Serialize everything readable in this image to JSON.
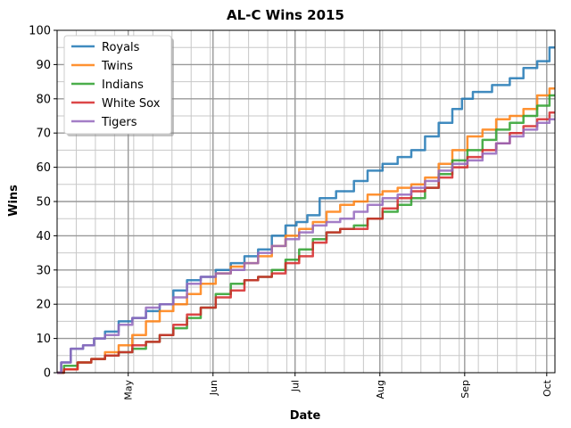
{
  "chart_data": {
    "type": "line",
    "title": "AL-C Wins 2015",
    "xlabel": "Date",
    "ylabel": "Wins",
    "xlim": [
      "2015-04-05",
      "2015-10-04"
    ],
    "ylim": [
      0,
      100
    ],
    "x_ticks": [
      {
        "date": "2015-05-01",
        "label": "May"
      },
      {
        "date": "2015-06-01",
        "label": "Jun"
      },
      {
        "date": "2015-07-01",
        "label": "Jul"
      },
      {
        "date": "2015-08-01",
        "label": "Aug"
      },
      {
        "date": "2015-09-01",
        "label": "Sep"
      },
      {
        "date": "2015-10-01",
        "label": "Oct"
      }
    ],
    "y_ticks": [
      0,
      10,
      20,
      30,
      40,
      50,
      60,
      70,
      80,
      90,
      100
    ],
    "grid": true,
    "legend": "top-left",
    "series": [
      {
        "name": "Royals",
        "color": "#1f77b4",
        "points": [
          [
            "2015-04-05",
            0
          ],
          [
            "2015-04-08",
            3
          ],
          [
            "2015-04-12",
            7
          ],
          [
            "2015-04-17",
            8
          ],
          [
            "2015-04-20",
            10
          ],
          [
            "2015-04-25",
            12
          ],
          [
            "2015-04-30",
            15
          ],
          [
            "2015-05-05",
            16
          ],
          [
            "2015-05-10",
            18
          ],
          [
            "2015-05-15",
            20
          ],
          [
            "2015-05-20",
            24
          ],
          [
            "2015-05-25",
            27
          ],
          [
            "2015-05-30",
            28
          ],
          [
            "2015-06-05",
            30
          ],
          [
            "2015-06-10",
            32
          ],
          [
            "2015-06-15",
            34
          ],
          [
            "2015-06-20",
            36
          ],
          [
            "2015-06-25",
            40
          ],
          [
            "2015-06-30",
            43
          ],
          [
            "2015-07-03",
            44
          ],
          [
            "2015-07-08",
            46
          ],
          [
            "2015-07-12",
            51
          ],
          [
            "2015-07-20",
            53
          ],
          [
            "2015-07-25",
            56
          ],
          [
            "2015-07-30",
            59
          ],
          [
            "2015-08-05",
            61
          ],
          [
            "2015-08-10",
            63
          ],
          [
            "2015-08-15",
            65
          ],
          [
            "2015-08-20",
            69
          ],
          [
            "2015-08-25",
            73
          ],
          [
            "2015-08-30",
            77
          ],
          [
            "2015-09-01",
            80
          ],
          [
            "2015-09-07",
            82
          ],
          [
            "2015-09-15",
            84
          ],
          [
            "2015-09-20",
            86
          ],
          [
            "2015-09-25",
            89
          ],
          [
            "2015-09-30",
            91
          ],
          [
            "2015-10-04",
            95
          ]
        ]
      },
      {
        "name": "Twins",
        "color": "#ff7f0e",
        "points": [
          [
            "2015-04-05",
            0
          ],
          [
            "2015-04-10",
            1
          ],
          [
            "2015-04-15",
            3
          ],
          [
            "2015-04-20",
            4
          ],
          [
            "2015-04-25",
            6
          ],
          [
            "2015-04-30",
            8
          ],
          [
            "2015-05-05",
            11
          ],
          [
            "2015-05-10",
            15
          ],
          [
            "2015-05-15",
            18
          ],
          [
            "2015-05-20",
            20
          ],
          [
            "2015-05-25",
            23
          ],
          [
            "2015-05-30",
            26
          ],
          [
            "2015-06-05",
            29
          ],
          [
            "2015-06-10",
            31
          ],
          [
            "2015-06-15",
            32
          ],
          [
            "2015-06-20",
            34
          ],
          [
            "2015-06-25",
            37
          ],
          [
            "2015-06-30",
            40
          ],
          [
            "2015-07-05",
            42
          ],
          [
            "2015-07-10",
            44
          ],
          [
            "2015-07-15",
            47
          ],
          [
            "2015-07-20",
            49
          ],
          [
            "2015-07-25",
            50
          ],
          [
            "2015-07-30",
            52
          ],
          [
            "2015-08-05",
            53
          ],
          [
            "2015-08-10",
            54
          ],
          [
            "2015-08-15",
            55
          ],
          [
            "2015-08-20",
            57
          ],
          [
            "2015-08-25",
            61
          ],
          [
            "2015-08-30",
            65
          ],
          [
            "2015-09-05",
            69
          ],
          [
            "2015-09-10",
            71
          ],
          [
            "2015-09-15",
            74
          ],
          [
            "2015-09-20",
            75
          ],
          [
            "2015-09-25",
            77
          ],
          [
            "2015-09-30",
            81
          ],
          [
            "2015-10-04",
            83
          ]
        ]
      },
      {
        "name": "Indians",
        "color": "#2ca02c",
        "points": [
          [
            "2015-04-05",
            0
          ],
          [
            "2015-04-10",
            2
          ],
          [
            "2015-04-15",
            3
          ],
          [
            "2015-04-20",
            4
          ],
          [
            "2015-04-25",
            5
          ],
          [
            "2015-04-30",
            6
          ],
          [
            "2015-05-05",
            7
          ],
          [
            "2015-05-10",
            9
          ],
          [
            "2015-05-15",
            11
          ],
          [
            "2015-05-20",
            13
          ],
          [
            "2015-05-25",
            16
          ],
          [
            "2015-05-30",
            19
          ],
          [
            "2015-06-05",
            23
          ],
          [
            "2015-06-10",
            26
          ],
          [
            "2015-06-15",
            27
          ],
          [
            "2015-06-20",
            28
          ],
          [
            "2015-06-25",
            30
          ],
          [
            "2015-06-30",
            33
          ],
          [
            "2015-07-05",
            36
          ],
          [
            "2015-07-10",
            39
          ],
          [
            "2015-07-15",
            41
          ],
          [
            "2015-07-20",
            42
          ],
          [
            "2015-07-25",
            43
          ],
          [
            "2015-07-30",
            45
          ],
          [
            "2015-08-05",
            47
          ],
          [
            "2015-08-10",
            49
          ],
          [
            "2015-08-15",
            51
          ],
          [
            "2015-08-20",
            54
          ],
          [
            "2015-08-25",
            58
          ],
          [
            "2015-08-30",
            62
          ],
          [
            "2015-09-05",
            65
          ],
          [
            "2015-09-10",
            68
          ],
          [
            "2015-09-15",
            71
          ],
          [
            "2015-09-20",
            73
          ],
          [
            "2015-09-25",
            75
          ],
          [
            "2015-09-30",
            78
          ],
          [
            "2015-10-04",
            81
          ]
        ]
      },
      {
        "name": "White Sox",
        "color": "#d62728",
        "points": [
          [
            "2015-04-05",
            0
          ],
          [
            "2015-04-10",
            1
          ],
          [
            "2015-04-15",
            3
          ],
          [
            "2015-04-20",
            4
          ],
          [
            "2015-04-25",
            5
          ],
          [
            "2015-04-30",
            6
          ],
          [
            "2015-05-05",
            8
          ],
          [
            "2015-05-10",
            9
          ],
          [
            "2015-05-15",
            11
          ],
          [
            "2015-05-20",
            14
          ],
          [
            "2015-05-25",
            17
          ],
          [
            "2015-05-30",
            19
          ],
          [
            "2015-06-05",
            22
          ],
          [
            "2015-06-10",
            24
          ],
          [
            "2015-06-15",
            27
          ],
          [
            "2015-06-20",
            28
          ],
          [
            "2015-06-25",
            29
          ],
          [
            "2015-06-30",
            32
          ],
          [
            "2015-07-05",
            34
          ],
          [
            "2015-07-10",
            38
          ],
          [
            "2015-07-15",
            41
          ],
          [
            "2015-07-20",
            42
          ],
          [
            "2015-07-25",
            42
          ],
          [
            "2015-07-30",
            45
          ],
          [
            "2015-08-05",
            48
          ],
          [
            "2015-08-10",
            51
          ],
          [
            "2015-08-15",
            53
          ],
          [
            "2015-08-20",
            54
          ],
          [
            "2015-08-25",
            57
          ],
          [
            "2015-08-30",
            60
          ],
          [
            "2015-09-05",
            63
          ],
          [
            "2015-09-10",
            65
          ],
          [
            "2015-09-15",
            67
          ],
          [
            "2015-09-20",
            70
          ],
          [
            "2015-09-25",
            72
          ],
          [
            "2015-09-30",
            74
          ],
          [
            "2015-10-04",
            76
          ]
        ]
      },
      {
        "name": "Tigers",
        "color": "#9467bd",
        "points": [
          [
            "2015-04-05",
            0
          ],
          [
            "2015-04-08",
            3
          ],
          [
            "2015-04-12",
            7
          ],
          [
            "2015-04-17",
            8
          ],
          [
            "2015-04-20",
            10
          ],
          [
            "2015-04-25",
            11
          ],
          [
            "2015-04-30",
            14
          ],
          [
            "2015-05-05",
            16
          ],
          [
            "2015-05-10",
            19
          ],
          [
            "2015-05-15",
            20
          ],
          [
            "2015-05-20",
            22
          ],
          [
            "2015-05-25",
            26
          ],
          [
            "2015-05-30",
            28
          ],
          [
            "2015-06-05",
            29
          ],
          [
            "2015-06-10",
            30
          ],
          [
            "2015-06-15",
            32
          ],
          [
            "2015-06-20",
            35
          ],
          [
            "2015-06-25",
            37
          ],
          [
            "2015-06-30",
            39
          ],
          [
            "2015-07-05",
            41
          ],
          [
            "2015-07-10",
            43
          ],
          [
            "2015-07-15",
            44
          ],
          [
            "2015-07-20",
            45
          ],
          [
            "2015-07-25",
            47
          ],
          [
            "2015-07-30",
            49
          ],
          [
            "2015-08-05",
            51
          ],
          [
            "2015-08-10",
            52
          ],
          [
            "2015-08-15",
            54
          ],
          [
            "2015-08-20",
            56
          ],
          [
            "2015-08-25",
            59
          ],
          [
            "2015-08-30",
            61
          ],
          [
            "2015-09-05",
            62
          ],
          [
            "2015-09-10",
            64
          ],
          [
            "2015-09-15",
            67
          ],
          [
            "2015-09-20",
            69
          ],
          [
            "2015-09-25",
            71
          ],
          [
            "2015-09-30",
            73
          ],
          [
            "2015-10-04",
            74
          ]
        ]
      }
    ]
  }
}
